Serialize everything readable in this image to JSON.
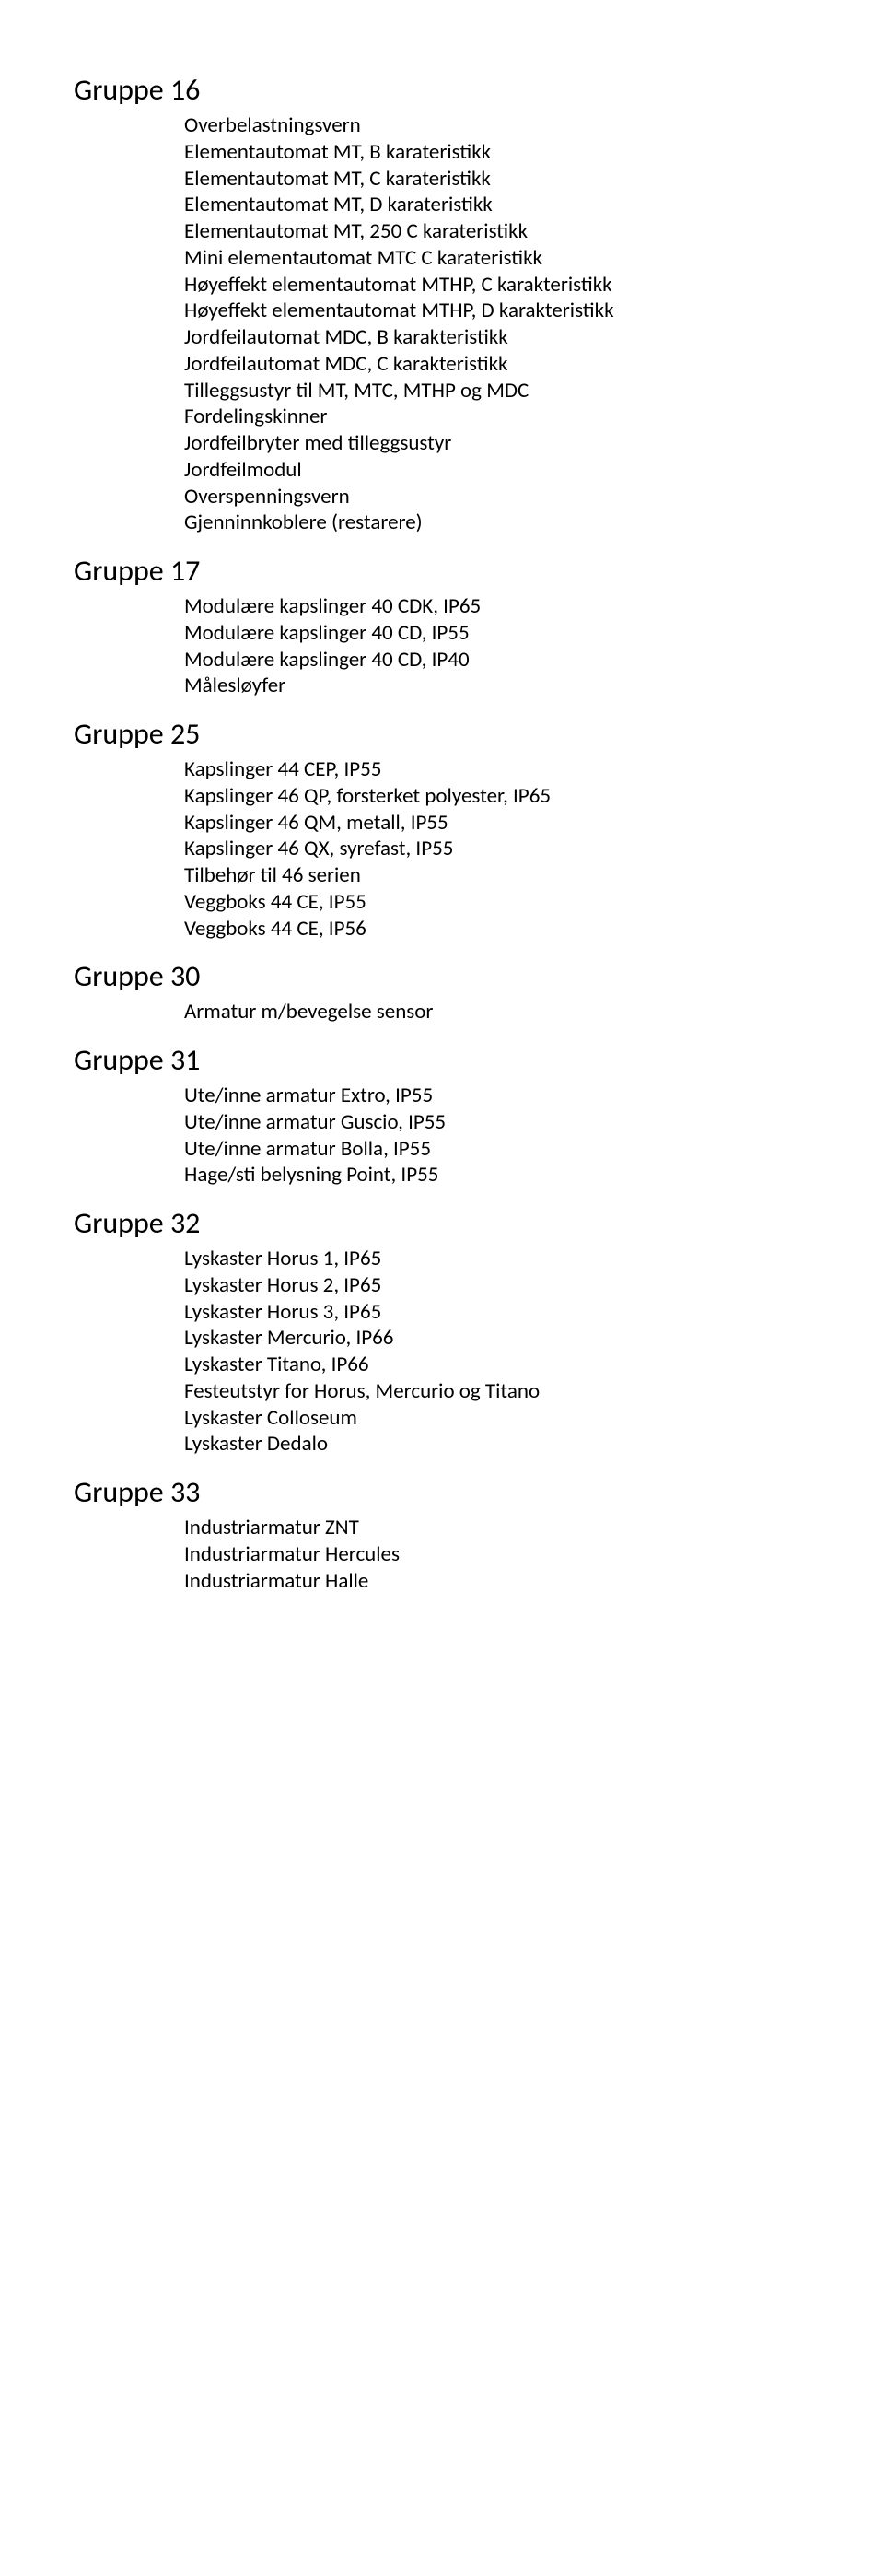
{
  "groups": [
    {
      "title": "Gruppe 16",
      "items": [
        "Overbelastningsvern",
        "Elementautomat MT, B karateristikk",
        "Elementautomat MT, C karateristikk",
        "Elementautomat MT, D karateristikk",
        "Elementautomat MT, 250 C karateristikk",
        "Mini elementautomat MTC C karateristikk",
        "Høyeffekt elementautomat MTHP, C karakteristikk",
        "Høyeffekt elementautomat MTHP, D karakteristikk",
        "Jordfeilautomat MDC, B karakteristikk",
        "Jordfeilautomat MDC, C karakteristikk",
        "Tilleggsustyr til MT, MTC, MTHP og MDC",
        "Fordelingskinner",
        "Jordfeilbryter med tilleggsustyr",
        "Jordfeilmodul",
        "Overspenningsvern",
        "Gjenninnkoblere (restarere)"
      ]
    },
    {
      "title": "Gruppe 17",
      "items": [
        "Modulære kapslinger 40 CDK, IP65",
        "Modulære kapslinger 40 CD, IP55",
        "Modulære kapslinger 40 CD, IP40",
        "Målesløyfer"
      ]
    },
    {
      "title": "Gruppe 25",
      "items": [
        "Kapslinger 44 CEP, IP55",
        "Kapslinger 46 QP, forsterket polyester, IP65",
        "Kapslinger 46 QM, metall, IP55",
        "Kapslinger 46 QX, syrefast, IP55",
        "Tilbehør til 46 serien",
        "Veggboks 44 CE, IP55",
        "Veggboks 44 CE, IP56"
      ]
    },
    {
      "title": "Gruppe 30",
      "items": [
        "Armatur m/bevegelse sensor"
      ]
    },
    {
      "title": "Gruppe 31",
      "items": [
        "Ute/inne armatur Extro, IP55",
        "Ute/inne armatur Guscio, IP55",
        "Ute/inne armatur Bolla, IP55",
        "Hage/sti belysning Point, IP55"
      ]
    },
    {
      "title": "Gruppe 32",
      "items": [
        "Lyskaster Horus 1, IP65",
        "Lyskaster Horus 2, IP65",
        "Lyskaster Horus 3, IP65",
        "Lyskaster Mercurio, IP66",
        "Lyskaster Titano, IP66",
        "Festeutstyr for Horus, Mercurio og Titano",
        "Lyskaster Colloseum",
        "Lyskaster Dedalo"
      ]
    },
    {
      "title": "Gruppe 33",
      "items": [
        "Industriarmatur ZNT",
        "Industriarmatur Hercules",
        "Industriarmatur Halle"
      ]
    }
  ]
}
